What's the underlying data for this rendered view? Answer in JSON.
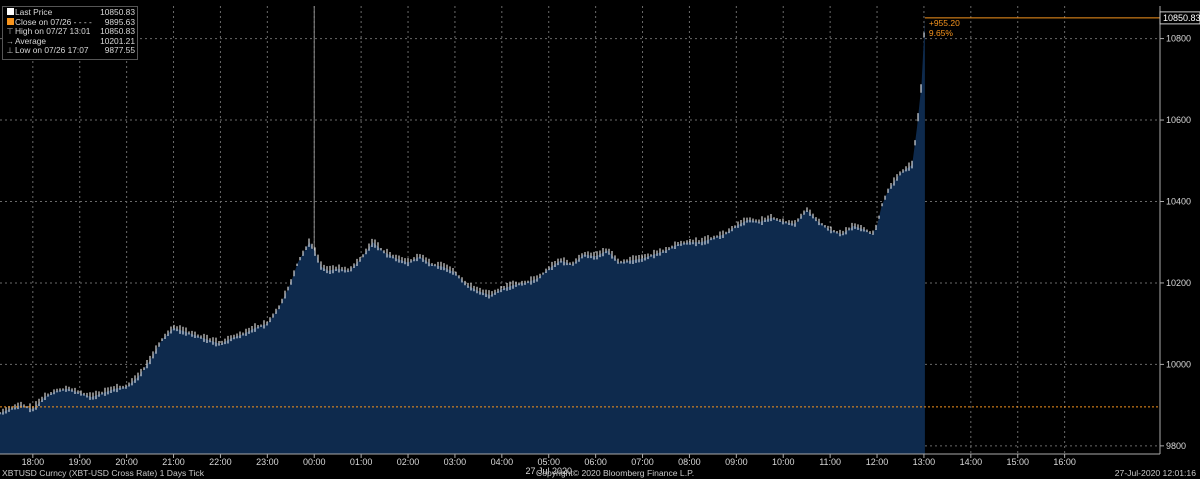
{
  "legend": {
    "items": [
      {
        "label": "Last Price",
        "value": "10850.83"
      },
      {
        "label": "Close on 07/26  - - - -",
        "value": "9895.63"
      },
      {
        "label": "High on 07/27 13:01",
        "value": "10850.83"
      },
      {
        "label": "Average",
        "value": "10201.21"
      },
      {
        "label": "Low on 07/26 17:07",
        "value": "9877.55"
      }
    ]
  },
  "colors": {
    "area": "#0e2a4d",
    "line": "#ffffff",
    "accent": "#f7941d",
    "grid": "#6a6a6a",
    "background": "#000000"
  },
  "footer": {
    "security": "XBTUSD Curncy (XBT-USD Cross Rate) 1 Days  Tick",
    "copyright": "Copyright© 2020 Bloomberg Finance L.P.",
    "timestamp": "27-Jul-2020 12:01:16"
  },
  "chart_data": {
    "type": "area",
    "x_tick_labels": [
      "18:00",
      "19:00",
      "20:00",
      "21:00",
      "22:00",
      "23:00",
      "00:00",
      "01:00",
      "02:00",
      "03:00",
      "04:00",
      "05:00",
      "06:00",
      "07:00",
      "08:00",
      "09:00",
      "10:00",
      "11:00",
      "12:00",
      "13:00",
      "14:00",
      "15:00",
      "16:00"
    ],
    "x_date_label": "27 Jul 2020",
    "y_tick_labels": [
      "9800",
      "10000",
      "10200",
      "10400",
      "10600",
      "10800"
    ],
    "ylim": [
      9780,
      10880
    ],
    "grid": true,
    "legend_position": "top-left",
    "reference_line": {
      "label": "Close on 07/26",
      "value": 9895.63
    },
    "last_price_label": "10850.83",
    "change_label": "+955.20",
    "change_pct_label": "9.65%",
    "x_hours": [
      17.3,
      17.5,
      17.75,
      18.0,
      18.25,
      18.5,
      18.75,
      19.0,
      19.25,
      19.5,
      19.75,
      20.0,
      20.25,
      20.5,
      20.75,
      21.0,
      21.25,
      21.5,
      21.75,
      22.0,
      22.25,
      22.5,
      22.75,
      23.0,
      23.25,
      23.5,
      23.65,
      23.8,
      23.9,
      24.0,
      24.15,
      24.3,
      24.5,
      24.75,
      25.0,
      25.25,
      25.5,
      25.75,
      26.0,
      26.25,
      26.5,
      26.75,
      27.0,
      27.25,
      27.5,
      27.75,
      28.0,
      28.25,
      28.5,
      28.75,
      29.0,
      29.25,
      29.5,
      29.75,
      30.0,
      30.25,
      30.5,
      30.75,
      31.0,
      31.25,
      31.5,
      31.75,
      32.0,
      32.25,
      32.5,
      32.75,
      33.0,
      33.25,
      33.5,
      33.75,
      34.0,
      34.25,
      34.5,
      34.75,
      35.0,
      35.25,
      35.5,
      35.75,
      35.9,
      36.0,
      36.1,
      36.25,
      36.5,
      36.75,
      36.85,
      36.95,
      37.02
    ],
    "values": [
      9880,
      9890,
      9900,
      9890,
      9920,
      9935,
      9940,
      9930,
      9920,
      9930,
      9940,
      9945,
      9970,
      10010,
      10060,
      10090,
      10080,
      10070,
      10060,
      10050,
      10065,
      10075,
      10090,
      10100,
      10140,
      10200,
      10250,
      10280,
      10300,
      10280,
      10240,
      10230,
      10235,
      10230,
      10260,
      10300,
      10275,
      10260,
      10250,
      10265,
      10245,
      10240,
      10225,
      10195,
      10180,
      10170,
      10185,
      10195,
      10200,
      10210,
      10235,
      10255,
      10245,
      10270,
      10265,
      10280,
      10250,
      10255,
      10260,
      10270,
      10280,
      10295,
      10300,
      10300,
      10310,
      10320,
      10340,
      10355,
      10350,
      10360,
      10350,
      10345,
      10380,
      10350,
      10330,
      10320,
      10340,
      10330,
      10320,
      10340,
      10390,
      10430,
      10470,
      10490,
      10580,
      10690,
      10850.83
    ]
  }
}
